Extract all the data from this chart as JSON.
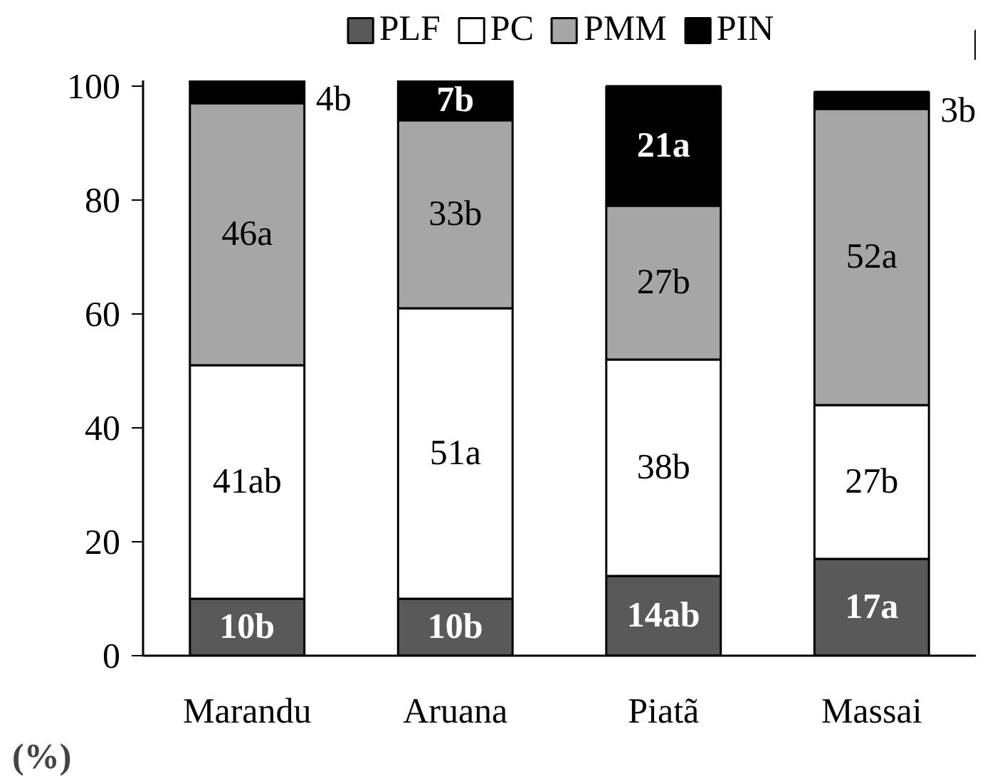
{
  "chart_data": {
    "type": "bar",
    "stacked": true,
    "ylabel": "(%)",
    "categories": [
      "Marandu",
      "Aruana",
      "Piatã",
      "Massai"
    ],
    "series": [
      {
        "name": "PLF",
        "color": "#595959",
        "values": [
          10,
          10,
          14,
          17
        ],
        "value_labels": [
          "10b",
          "10b",
          "14ab",
          "17a"
        ]
      },
      {
        "name": "PC",
        "color": "#ffffff",
        "values": [
          41,
          51,
          38,
          27
        ],
        "value_labels": [
          "41ab",
          "51a",
          "38b",
          "27b"
        ]
      },
      {
        "name": "PMM",
        "color": "#a6a6a6",
        "values": [
          46,
          33,
          27,
          52
        ],
        "value_labels": [
          "46a",
          "33b",
          "27b",
          "52a"
        ]
      },
      {
        "name": "PIN",
        "color": "#000000",
        "values": [
          4,
          7,
          21,
          3
        ],
        "value_labels": [
          "4b",
          "7b",
          "21a",
          "3b"
        ]
      }
    ],
    "ylim": [
      0,
      101
    ],
    "yticks": [
      0,
      20,
      40,
      60,
      80,
      100
    ],
    "grid": false,
    "legend": "top"
  }
}
